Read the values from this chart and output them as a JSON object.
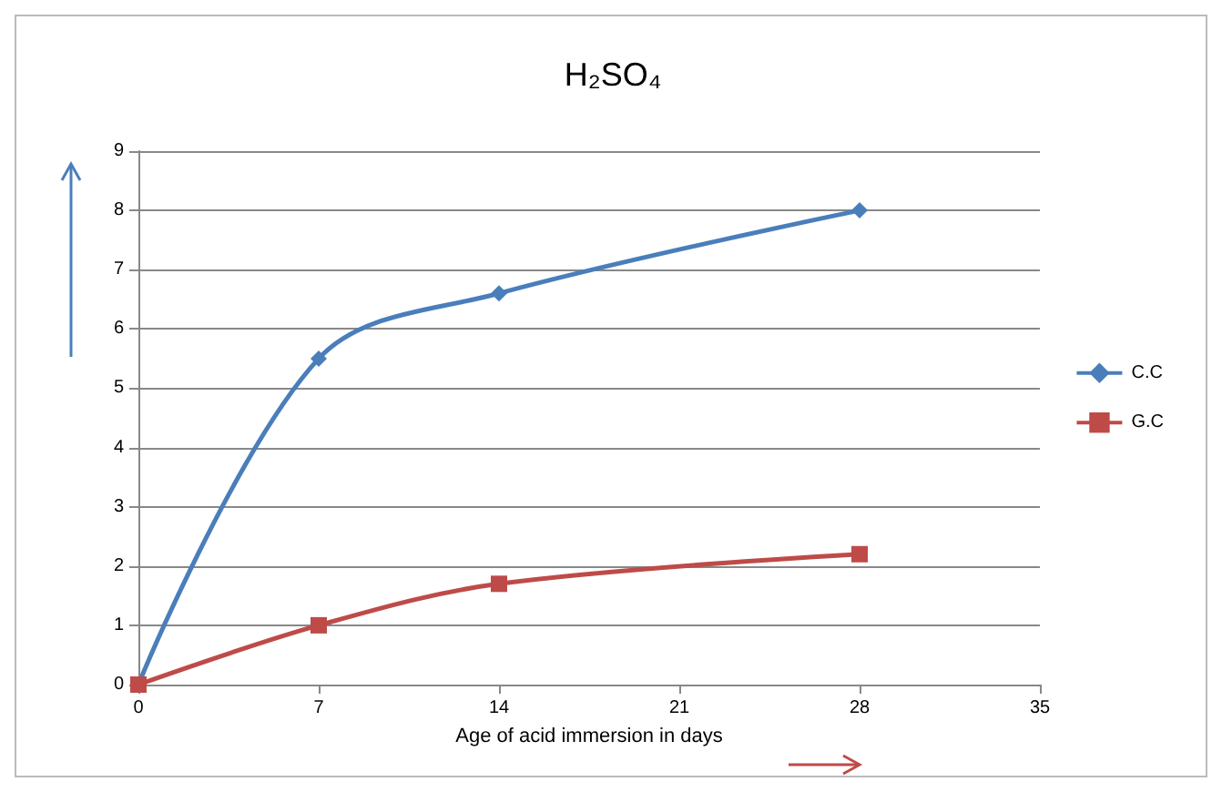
{
  "chart_data": {
    "type": "line",
    "title": "H₂SO₄",
    "xlabel": "Age of acid immersion in days",
    "x": [
      0,
      7,
      14,
      28
    ],
    "series": [
      {
        "name": "C.C",
        "color": "#4a7ebb",
        "values": [
          0,
          5.5,
          6.6,
          8
        ],
        "marker": "diamond"
      },
      {
        "name": "G.C",
        "color": "#be4b48",
        "values": [
          0,
          1.0,
          1.7,
          2.2
        ],
        "marker": "square"
      }
    ],
    "xlim": [
      0,
      35
    ],
    "xticks": [
      0,
      7,
      14,
      21,
      28,
      35
    ],
    "ylim": [
      0,
      9
    ],
    "yticks": [
      0,
      1,
      2,
      3,
      4,
      5,
      6,
      7,
      8,
      9
    ],
    "grid": "y",
    "legend": "right",
    "line_style": "solid"
  }
}
